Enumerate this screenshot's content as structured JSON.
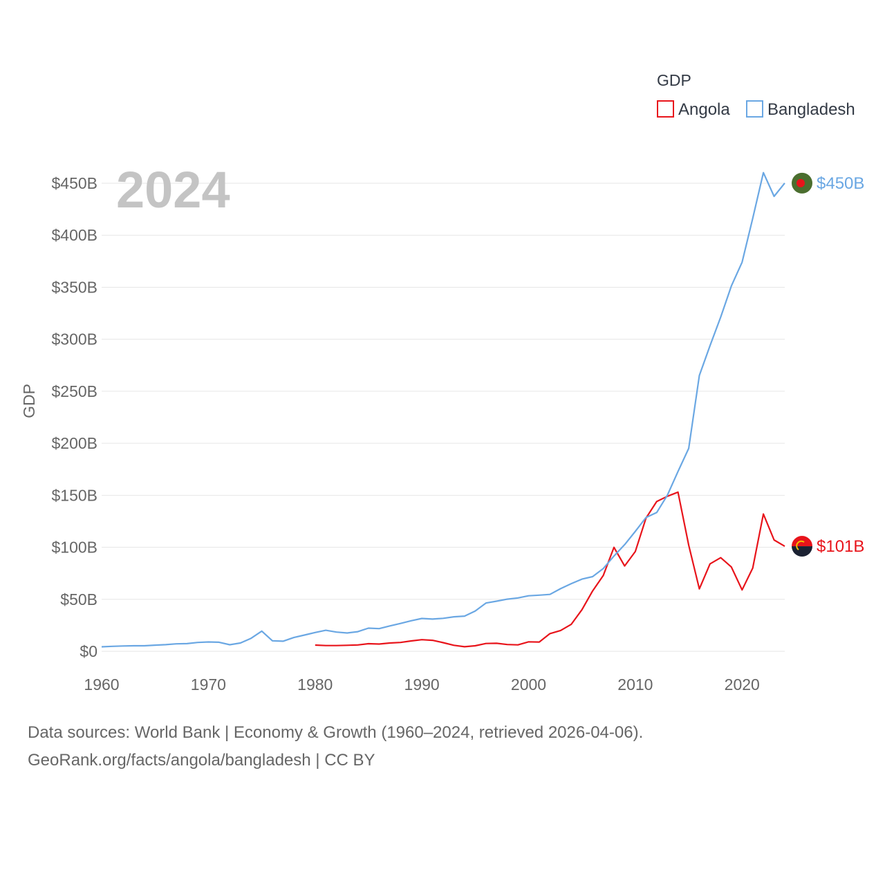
{
  "chart_data": {
    "type": "line",
    "title": "",
    "xlabel": "",
    "ylabel": "GDP",
    "xlim": [
      1960,
      2024
    ],
    "ylim": [
      0,
      450
    ],
    "year_label": "2024",
    "legend": {
      "title": "GDP",
      "placement": "top-right"
    },
    "x_ticks": [
      "1960",
      "1970",
      "1980",
      "1990",
      "2000",
      "2010",
      "2020"
    ],
    "y_ticks": [
      {
        "value": 0,
        "label": "$0"
      },
      {
        "value": 50,
        "label": "$50B"
      },
      {
        "value": 100,
        "label": "$100B"
      },
      {
        "value": 150,
        "label": "$150B"
      },
      {
        "value": 200,
        "label": "$200B"
      },
      {
        "value": 250,
        "label": "$250B"
      },
      {
        "value": 300,
        "label": "$300B"
      },
      {
        "value": 350,
        "label": "$350B"
      },
      {
        "value": 400,
        "label": "$400B"
      },
      {
        "value": 450,
        "label": "$450B"
      }
    ],
    "series": [
      {
        "name": "Angola",
        "color": "#e8141b",
        "end_label": "$101B",
        "x": [
          1980,
          1981,
          1982,
          1983,
          1984,
          1985,
          1986,
          1987,
          1988,
          1989,
          1990,
          1991,
          1992,
          1993,
          1994,
          1995,
          1996,
          1997,
          1998,
          1999,
          2000,
          2001,
          2002,
          2003,
          2004,
          2005,
          2006,
          2007,
          2008,
          2009,
          2010,
          2011,
          2012,
          2013,
          2014,
          2015,
          2016,
          2017,
          2018,
          2019,
          2020,
          2021,
          2022,
          2023,
          2024
        ],
        "values": [
          6,
          5.5,
          5.5,
          5.8,
          6.1,
          7.3,
          7,
          8,
          8.5,
          10,
          11.2,
          10.6,
          8.3,
          5.8,
          4.4,
          5.3,
          7.5,
          7.7,
          6.5,
          6.2,
          9.1,
          8.9,
          17,
          20,
          26,
          40,
          58,
          73,
          100,
          82,
          96,
          128,
          144,
          149,
          153,
          102,
          60,
          84,
          90,
          81,
          59,
          80,
          132,
          107,
          101
        ]
      },
      {
        "name": "Bangladesh",
        "color": "#6aa7e3",
        "end_label": "$450B",
        "x": [
          1960,
          1961,
          1962,
          1963,
          1964,
          1965,
          1966,
          1967,
          1968,
          1969,
          1970,
          1971,
          1972,
          1973,
          1974,
          1975,
          1976,
          1977,
          1978,
          1979,
          1980,
          1981,
          1982,
          1983,
          1984,
          1985,
          1986,
          1987,
          1988,
          1989,
          1990,
          1991,
          1992,
          1993,
          1994,
          1995,
          1996,
          1997,
          1998,
          1999,
          2000,
          2001,
          2002,
          2003,
          2004,
          2005,
          2006,
          2007,
          2008,
          2009,
          2010,
          2011,
          2012,
          2013,
          2014,
          2015,
          2016,
          2017,
          2018,
          2019,
          2020,
          2021,
          2022,
          2023,
          2024
        ],
        "values": [
          4.3,
          4.8,
          5.1,
          5.3,
          5.3,
          5.9,
          6.4,
          7.2,
          7.4,
          8.5,
          9,
          8.7,
          6.3,
          8,
          12.5,
          19.4,
          10.1,
          9.7,
          13.2,
          15.6,
          18.1,
          20.2,
          18.5,
          17.6,
          18.9,
          22.3,
          21.8,
          24.4,
          26.8,
          29.4,
          31.6,
          31,
          31.7,
          33.2,
          33.8,
          38.7,
          46.4,
          48.2,
          50.1,
          51.3,
          53.4,
          54,
          54.7,
          60.2,
          65.1,
          69.4,
          71.8,
          79.6,
          91.6,
          102.5,
          115.3,
          128.6,
          133.4,
          150,
          172.9,
          195.1,
          265.2,
          293.8,
          321.4,
          351.2,
          374,
          416.3,
          460.2,
          437.4,
          450.1
        ]
      }
    ]
  },
  "footer": {
    "line1": "Data sources: World Bank | Economy & Growth (1960–2024, retrieved 2026-04-06).",
    "line2": "GeoRank.org/facts/angola/bangladesh | CC BY"
  }
}
